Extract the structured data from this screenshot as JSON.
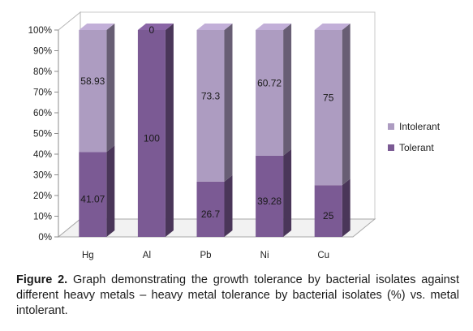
{
  "chart_data": {
    "type": "bar",
    "stacked": true,
    "percent": true,
    "three_d": true,
    "categories": [
      "Hg",
      "Al",
      "Pb",
      "Ni",
      "Cu"
    ],
    "series": [
      {
        "name": "Tolerant",
        "values": [
          41.07,
          100,
          26.7,
          39.28,
          25
        ],
        "labels": [
          "41.07",
          "100",
          "26.7",
          "39.28",
          "25"
        ],
        "color": "#7b5a94"
      },
      {
        "name": "Intolerant",
        "values": [
          58.93,
          0,
          73.3,
          60.72,
          75
        ],
        "labels": [
          "58.93",
          "0",
          "73.3",
          "60.72",
          "75"
        ],
        "color": "#ad9cc1"
      }
    ],
    "yticks": [
      "0%",
      "10%",
      "20%",
      "30%",
      "40%",
      "50%",
      "60%",
      "70%",
      "80%",
      "90%",
      "100%"
    ],
    "ylim": [
      0,
      100
    ],
    "grid": false,
    "legend": {
      "position": "right",
      "entries": [
        "Intolerant",
        "Tolerant"
      ]
    }
  },
  "caption": {
    "label": "Figure 2.",
    "text": " Graph demonstrating the growth tolerance by bacterial isolates against different heavy metals – heavy metal tolerance by bacterial isolates (%) vs. metal intolerant."
  }
}
